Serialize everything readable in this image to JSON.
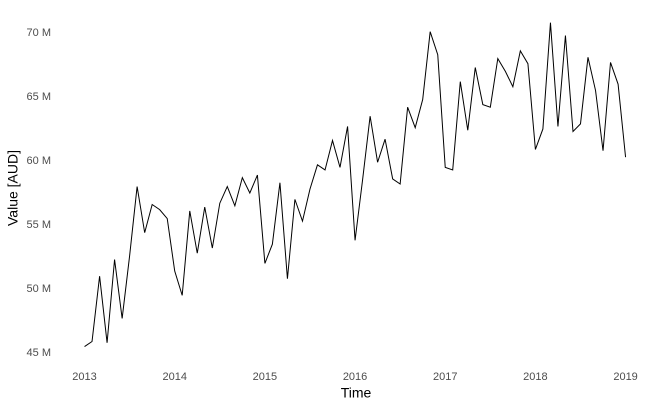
{
  "chart_data": {
    "type": "line",
    "x_label": "Time",
    "y_label": "Value [AUD]",
    "x": [
      2013,
      2013.083,
      2013.167,
      2013.25,
      2013.333,
      2013.417,
      2013.5,
      2013.583,
      2013.667,
      2013.75,
      2013.833,
      2013.917,
      2014,
      2014.083,
      2014.167,
      2014.25,
      2014.333,
      2014.417,
      2014.5,
      2014.583,
      2014.667,
      2014.75,
      2014.833,
      2014.917,
      2015,
      2015.083,
      2015.167,
      2015.25,
      2015.333,
      2015.417,
      2015.5,
      2015.583,
      2015.667,
      2015.75,
      2015.833,
      2015.917,
      2016,
      2016.083,
      2016.167,
      2016.25,
      2016.333,
      2016.417,
      2016.5,
      2016.583,
      2016.667,
      2016.75,
      2016.833,
      2016.917,
      2017,
      2017.083,
      2017.167,
      2017.25,
      2017.333,
      2017.417,
      2017.5,
      2017.583,
      2017.667,
      2017.75,
      2017.833,
      2017.917,
      2018,
      2018.083,
      2018.167,
      2018.25,
      2018.333,
      2018.417,
      2018.5,
      2018.583,
      2018.667,
      2018.75,
      2018.833,
      2018.917,
      2019
    ],
    "series": [
      {
        "color": "#000000",
        "values": [
          45.5,
          45.9,
          51.0,
          45.8,
          52.3,
          47.7,
          52.6,
          58.0,
          54.4,
          56.6,
          56.2,
          55.5,
          51.4,
          49.5,
          56.1,
          52.8,
          56.4,
          53.2,
          56.7,
          58.0,
          56.5,
          58.7,
          57.5,
          58.9,
          52.0,
          53.5,
          58.3,
          50.8,
          57.0,
          55.3,
          57.8,
          59.7,
          59.3,
          61.6,
          59.5,
          62.7,
          53.8,
          58.5,
          63.5,
          59.9,
          61.7,
          58.6,
          58.2,
          64.2,
          62.6,
          64.8,
          70.1,
          68.3,
          59.5,
          59.3,
          66.2,
          62.4,
          67.3,
          64.4,
          64.2,
          68.0,
          67.0,
          65.8,
          68.6,
          67.6,
          60.9,
          62.5,
          70.8,
          62.7,
          69.8,
          62.3,
          62.9,
          68.1,
          65.5,
          60.8,
          67.7,
          66.0,
          60.3
        ]
      }
    ],
    "xlim": [
      2012.75,
      2019.16
    ],
    "xticks": [
      2013,
      2014,
      2015,
      2016,
      2017,
      2018,
      2019
    ],
    "ylim": [
      44.5,
      71.2
    ],
    "yticks": [
      {
        "value": 45,
        "label": "45 M"
      },
      {
        "value": 50,
        "label": "50 M"
      },
      {
        "value": 55,
        "label": "55 M"
      },
      {
        "value": 60,
        "label": "60 M"
      },
      {
        "value": 65,
        "label": "65 M"
      },
      {
        "value": 70,
        "label": "70 M"
      }
    ],
    "grid": false
  }
}
